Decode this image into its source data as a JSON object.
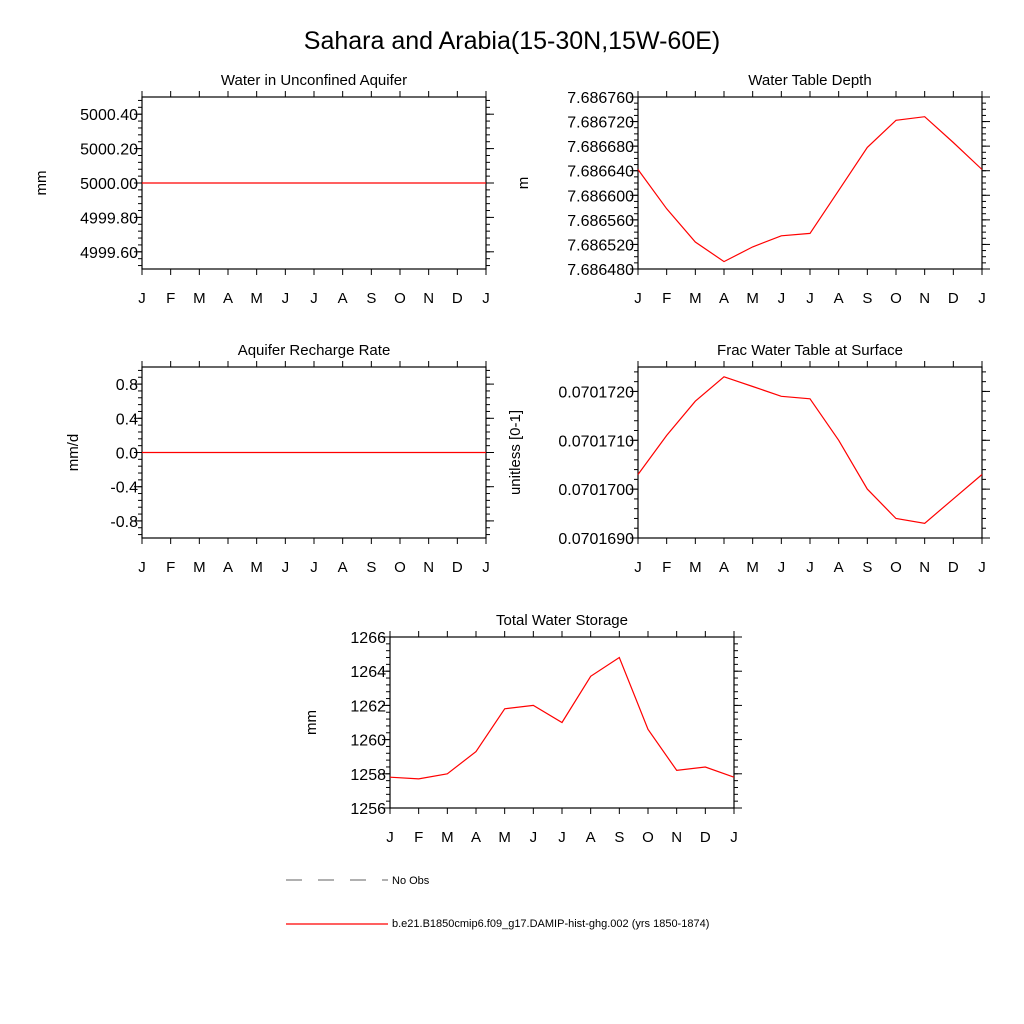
{
  "title": "Sahara and Arabia(15-30N,15W-60E)",
  "months": [
    "J",
    "F",
    "M",
    "A",
    "M",
    "J",
    "J",
    "A",
    "S",
    "O",
    "N",
    "D",
    "J"
  ],
  "colors": {
    "model": "#ff0000",
    "obs": "#808080",
    "axis": "#000000"
  },
  "legend": {
    "obs_label": "No Obs",
    "model_label": "b.e21.B1850cmip6.f09_g17.DAMIP-hist-ghg.002 (yrs 1850-1874)"
  },
  "chart_data": [
    {
      "type": "line",
      "id": "aquifer-water",
      "title": "Water in Unconfined Aquifer",
      "ylabel": "mm",
      "ylim": [
        4999.5,
        5000.5
      ],
      "yticks": [
        "5000.40",
        "5000.20",
        "5000.00",
        "4999.80",
        "4999.60"
      ],
      "ytick_values": [
        5000.4,
        5000.2,
        5000.0,
        4999.8,
        4999.6
      ],
      "minor_step": 0.04,
      "series": [
        {
          "values": [
            5000.0,
            5000.0,
            5000.0,
            5000.0,
            5000.0,
            5000.0,
            5000.0,
            5000.0,
            5000.0,
            5000.0,
            5000.0,
            5000.0,
            5000.0
          ]
        }
      ]
    },
    {
      "type": "line",
      "id": "water-table-depth",
      "title": "Water Table Depth",
      "ylabel": "m",
      "ylim": [
        7.68648,
        7.68676
      ],
      "yticks": [
        "7.686760",
        "7.686720",
        "7.686680",
        "7.686640",
        "7.686600",
        "7.686560",
        "7.686520",
        "7.686480"
      ],
      "ytick_values": [
        7.68676,
        7.68672,
        7.68668,
        7.68664,
        7.6866,
        7.68656,
        7.68652,
        7.68648
      ],
      "minor_step": 1e-05,
      "series": [
        {
          "values": [
            7.686642,
            7.686578,
            7.686524,
            7.686492,
            7.686516,
            7.686534,
            7.686538,
            7.686608,
            7.686678,
            7.686722,
            7.686728,
            7.686686,
            7.686642
          ]
        }
      ]
    },
    {
      "type": "line",
      "id": "recharge-rate",
      "title": "Aquifer Recharge Rate",
      "ylabel": "mm/d",
      "ylim": [
        -1.0,
        1.0
      ],
      "yticks": [
        "0.8",
        "0.4",
        "0.0",
        "-0.4",
        "-0.8"
      ],
      "ytick_values": [
        0.8,
        0.4,
        0.0,
        -0.4,
        -0.8
      ],
      "minor_step": 0.08,
      "series": [
        {
          "values": [
            0,
            0,
            0,
            0,
            0,
            0,
            0,
            0,
            0,
            0,
            0,
            0,
            0
          ]
        }
      ]
    },
    {
      "type": "line",
      "id": "frac-water-table",
      "title": "Frac Water Table at Surface",
      "ylabel": "unitless [0-1]",
      "ylim": [
        0.070169,
        0.0701725
      ],
      "yticks": [
        "0.0701720",
        "0.0701710",
        "0.0701700",
        "0.0701690"
      ],
      "ytick_values": [
        0.070172,
        0.070171,
        0.07017,
        0.070169
      ],
      "minor_step": 2e-07,
      "series": [
        {
          "values": [
            0.0701703,
            0.0701711,
            0.0701718,
            0.0701723,
            0.0701721,
            0.0701719,
            0.07017185,
            0.070171,
            0.07017,
            0.0701694,
            0.0701693,
            0.0701698,
            0.0701703
          ]
        }
      ]
    },
    {
      "type": "line",
      "id": "total-water-storage",
      "title": "Total Water Storage",
      "ylabel": "mm",
      "ylim": [
        1256,
        1266
      ],
      "yticks": [
        "1266",
        "1264",
        "1262",
        "1260",
        "1258",
        "1256"
      ],
      "ytick_values": [
        1266,
        1264,
        1262,
        1260,
        1258,
        1256
      ],
      "minor_step": 0.4,
      "series": [
        {
          "values": [
            1257.8,
            1257.7,
            1258.0,
            1259.3,
            1261.8,
            1262.0,
            1261.0,
            1263.7,
            1264.8,
            1260.6,
            1258.2,
            1258.4,
            1257.8
          ]
        }
      ]
    }
  ]
}
